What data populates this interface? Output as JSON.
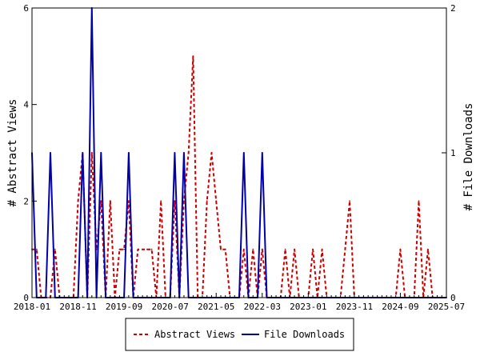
{
  "chart_data": {
    "type": "line",
    "ylabel_left": "# Abstract Views",
    "ylabel_right": "# File Downloads",
    "ylim_left": [
      0,
      6
    ],
    "ylim_right": [
      0,
      2
    ],
    "yticks_left": [
      "0",
      "2",
      "4",
      "6"
    ],
    "yticks_right": [
      "0",
      "1",
      "2"
    ],
    "xlim": [
      "2018-01",
      "2025-07"
    ],
    "xticks": [
      "2018-01",
      "2018-11",
      "2019-09",
      "2020-07",
      "2021-05",
      "2022-03",
      "2023-01",
      "2023-11",
      "2024-09",
      "2025-07"
    ],
    "grid": false,
    "legend_position": "bottom",
    "series": [
      {
        "name": "Abstract Views",
        "axis": "left",
        "color": "#cc0000",
        "style": "dashed",
        "x": [
          "2018-01",
          "2018-02",
          "2018-03",
          "2018-04",
          "2018-05",
          "2018-06",
          "2018-07",
          "2018-08",
          "2018-09",
          "2018-10",
          "2018-11",
          "2018-12",
          "2019-01",
          "2019-02",
          "2019-03",
          "2019-04",
          "2019-05",
          "2019-06",
          "2019-07",
          "2019-08",
          "2019-09",
          "2019-10",
          "2019-11",
          "2019-12",
          "2020-01",
          "2020-02",
          "2020-03",
          "2020-04",
          "2020-05",
          "2020-06",
          "2020-07",
          "2020-08",
          "2020-09",
          "2020-10",
          "2020-11",
          "2020-12",
          "2021-01",
          "2021-02",
          "2021-03",
          "2021-04",
          "2021-05",
          "2021-06",
          "2021-07",
          "2021-08",
          "2021-09",
          "2021-10",
          "2021-11",
          "2021-12",
          "2022-01",
          "2022-02",
          "2022-03",
          "2022-04",
          "2022-05",
          "2022-06",
          "2022-07",
          "2022-08",
          "2022-09",
          "2022-10",
          "2022-11",
          "2022-12",
          "2023-01",
          "2023-02",
          "2023-03",
          "2023-04",
          "2023-05",
          "2023-06",
          "2023-07",
          "2023-08",
          "2023-09",
          "2023-10",
          "2023-11",
          "2023-12",
          "2024-01",
          "2024-02",
          "2024-03",
          "2024-04",
          "2024-05",
          "2024-06",
          "2024-07",
          "2024-08",
          "2024-09",
          "2024-10",
          "2024-11",
          "2024-12",
          "2025-01",
          "2025-02",
          "2025-03",
          "2025-04",
          "2025-05",
          "2025-06",
          "2025-07"
        ],
        "values": [
          1,
          1,
          0,
          0,
          0,
          1,
          0,
          0,
          0,
          0,
          2,
          3,
          0,
          3,
          1,
          2,
          0,
          2,
          0,
          1,
          1,
          2,
          0,
          1,
          1,
          1,
          1,
          0,
          2,
          0,
          0,
          2,
          0,
          2,
          3,
          5,
          0,
          0,
          2,
          3,
          2,
          1,
          1,
          0,
          0,
          0,
          1,
          0,
          1,
          0,
          1,
          0,
          0,
          0,
          0,
          1,
          0,
          1,
          0,
          0,
          0,
          1,
          0,
          1,
          0,
          0,
          0,
          0,
          1,
          2,
          0,
          0,
          0,
          0,
          0,
          0,
          0,
          0,
          0,
          0,
          1,
          0,
          0,
          0,
          2,
          0,
          1,
          0,
          0,
          0,
          0
        ]
      },
      {
        "name": "File Downloads",
        "axis": "right",
        "color": "#0000aa",
        "style": "solid",
        "x": [
          "2018-01",
          "2018-02",
          "2018-03",
          "2018-04",
          "2018-05",
          "2018-06",
          "2018-07",
          "2018-08",
          "2018-09",
          "2018-10",
          "2018-11",
          "2018-12",
          "2019-01",
          "2019-02",
          "2019-03",
          "2019-04",
          "2019-05",
          "2019-06",
          "2019-07",
          "2019-08",
          "2019-09",
          "2019-10",
          "2019-11",
          "2019-12",
          "2020-01",
          "2020-02",
          "2020-03",
          "2020-04",
          "2020-05",
          "2020-06",
          "2020-07",
          "2020-08",
          "2020-09",
          "2020-10",
          "2020-11",
          "2020-12",
          "2021-01",
          "2021-02",
          "2021-03",
          "2021-04",
          "2021-05",
          "2021-06",
          "2021-07",
          "2021-08",
          "2021-09",
          "2021-10",
          "2021-11",
          "2021-12",
          "2022-01",
          "2022-02",
          "2022-03",
          "2022-04",
          "2022-05",
          "2022-06",
          "2022-07",
          "2022-08",
          "2022-09",
          "2022-10",
          "2022-11",
          "2022-12",
          "2023-01",
          "2023-02",
          "2023-03",
          "2023-04",
          "2023-05",
          "2023-06",
          "2023-07",
          "2023-08",
          "2023-09",
          "2023-10",
          "2023-11",
          "2023-12",
          "2024-01",
          "2024-02",
          "2024-03",
          "2024-04",
          "2024-05",
          "2024-06",
          "2024-07",
          "2024-08",
          "2024-09",
          "2024-10",
          "2024-11",
          "2024-12",
          "2025-01",
          "2025-02",
          "2025-03",
          "2025-04",
          "2025-05",
          "2025-06",
          "2025-07"
        ],
        "values": [
          1,
          0,
          0,
          0,
          1,
          0,
          0,
          0,
          0,
          0,
          0,
          1,
          0,
          2,
          0,
          1,
          0,
          0,
          0,
          0,
          0,
          1,
          0,
          0,
          0,
          0,
          0,
          0,
          0,
          0,
          0,
          1,
          0,
          1,
          0,
          0,
          0,
          0,
          0,
          0,
          0,
          0,
          0,
          0,
          0,
          0,
          1,
          0,
          0,
          0,
          1,
          0,
          0,
          0,
          0,
          0,
          0,
          0,
          0,
          0,
          0,
          0,
          0,
          0,
          0,
          0,
          0,
          0,
          0,
          0,
          0,
          0,
          0,
          0,
          0,
          0,
          0,
          0,
          0,
          0,
          0,
          0,
          0,
          0,
          0,
          0,
          0,
          0,
          0,
          0,
          0
        ]
      }
    ]
  }
}
